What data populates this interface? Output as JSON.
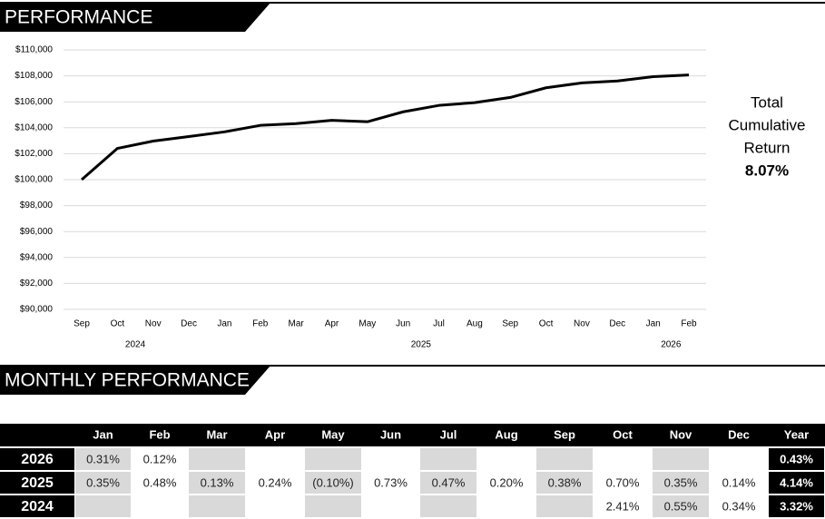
{
  "header": {
    "title": "PERFORMANCE"
  },
  "chart_data": {
    "type": "line",
    "categories": [
      "Sep",
      "Oct",
      "Nov",
      "Dec",
      "Jan",
      "Feb",
      "Mar",
      "Apr",
      "May",
      "Jun",
      "Jul",
      "Aug",
      "Sep",
      "Oct",
      "Nov",
      "Dec",
      "Jan",
      "Feb"
    ],
    "year_labels": [
      "2024",
      "2025",
      "2026"
    ],
    "values": [
      100000,
      102410,
      102973,
      103323,
      103685,
      104183,
      104318,
      104568,
      104464,
      105227,
      105722,
      105933,
      106336,
      107080,
      107455,
      107606,
      107940,
      108070
    ],
    "color": "#000000",
    "ylim": [
      90000,
      110000
    ],
    "yticks": [
      {
        "value": 90000,
        "label": "$90,000"
      },
      {
        "value": 92000,
        "label": "$92,000"
      },
      {
        "value": 94000,
        "label": "$94,000"
      },
      {
        "value": 96000,
        "label": "$96,000"
      },
      {
        "value": 98000,
        "label": "$98,000"
      },
      {
        "value": 100000,
        "label": "$100,000"
      },
      {
        "value": 102000,
        "label": "$102,000"
      },
      {
        "value": 104000,
        "label": "$104,000"
      },
      {
        "value": 106000,
        "label": "$106,000"
      },
      {
        "value": 108000,
        "label": "$108,000"
      },
      {
        "value": 110000,
        "label": "$110,000"
      }
    ],
    "grid": true
  },
  "summary": {
    "label_lines": [
      "Total",
      "Cumulative",
      "Return"
    ],
    "value": "8.07%"
  },
  "monthly": {
    "title": "MONTHLY PERFORMANCE",
    "table": {
      "columns": [
        "Jan",
        "Feb",
        "Mar",
        "Apr",
        "May",
        "Jun",
        "Jul",
        "Aug",
        "Sep",
        "Oct",
        "Nov",
        "Dec",
        "Year"
      ],
      "rows": [
        [
          "2026",
          "0.31%",
          "0.12%",
          null,
          null,
          null,
          null,
          null,
          null,
          null,
          null,
          null,
          null,
          "0.43%"
        ],
        [
          "2025",
          "0.35%",
          "0.48%",
          "0.13%",
          "0.24%",
          "(0.10%)",
          "0.73%",
          "0.47%",
          "0.20%",
          "0.38%",
          "0.70%",
          "0.35%",
          "0.14%",
          "4.14%"
        ],
        [
          "2024",
          null,
          null,
          null,
          null,
          null,
          null,
          null,
          null,
          null,
          "2.41%",
          "0.55%",
          "0.34%",
          "3.32%"
        ]
      ]
    }
  }
}
